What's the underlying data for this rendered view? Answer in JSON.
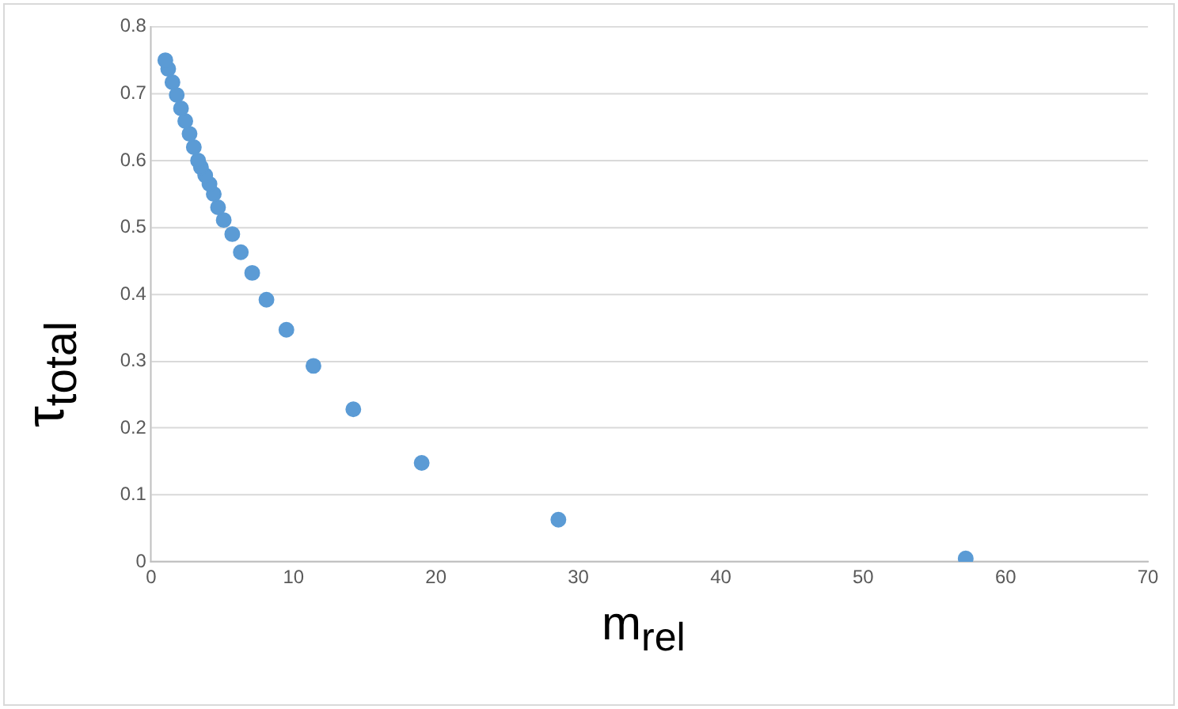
{
  "chart_data": {
    "type": "scatter",
    "xlabel": "m$_{rel}$",
    "ylabel": "τ$_{total}$",
    "series": [
      {
        "color": "#5b9bd5",
        "x": [
          57.2,
          28.6,
          19.0,
          14.2,
          11.4,
          9.5,
          8.1,
          7.1,
          6.3,
          5.7,
          5.1,
          4.7,
          4.4,
          4.1,
          3.8,
          3.5,
          3.3,
          3.0,
          2.7,
          2.4,
          2.1,
          1.8,
          1.5,
          1.2,
          1.0
        ],
        "values": [
          0.005,
          0.063,
          0.148,
          0.228,
          0.293,
          0.347,
          0.392,
          0.432,
          0.463,
          0.49,
          0.511,
          0.53,
          0.55,
          0.565,
          0.578,
          0.59,
          0.6,
          0.62,
          0.64,
          0.659,
          0.678,
          0.698,
          0.717,
          0.737,
          0.75
        ]
      }
    ],
    "xlim": [
      0,
      70
    ],
    "xticks": [
      0,
      10,
      20,
      30,
      40,
      50,
      60,
      70
    ],
    "ylim": [
      0,
      0.8
    ],
    "yticks": [
      0,
      0.1,
      0.2,
      0.3,
      0.4,
      0.5,
      0.6,
      0.7,
      0.8
    ],
    "grid": "y",
    "legend": false,
    "marker": "circle"
  }
}
